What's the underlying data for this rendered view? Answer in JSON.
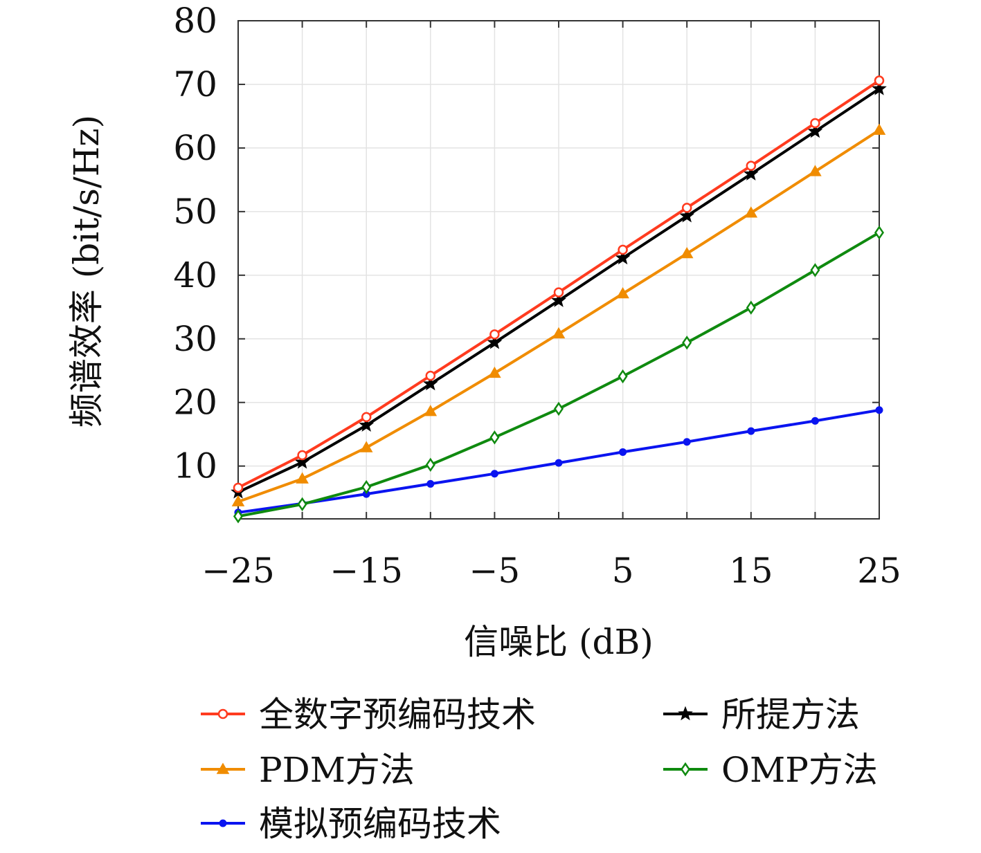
{
  "chart_data": {
    "type": "line",
    "title": "",
    "xlabel": "信噪比 (dB)",
    "ylabel": "频谱效率 (bit/s/Hz)",
    "x": [
      -25,
      -20,
      -15,
      -10,
      -5,
      0,
      5,
      10,
      15,
      20,
      25
    ],
    "xlim": [
      -25,
      25
    ],
    "ylim": [
      0,
      80
    ],
    "xticks": [
      -25,
      -15,
      -5,
      5,
      15,
      25
    ],
    "xtick_labels": [
      "−25",
      "−15",
      "−5",
      "5",
      "15",
      "25"
    ],
    "yticks": [
      10,
      20,
      30,
      40,
      50,
      60,
      70,
      80
    ],
    "ytick_labels": [
      "10",
      "20",
      "30",
      "40",
      "50",
      "60",
      "70",
      "80"
    ],
    "grid": true,
    "legend_position": "bottom, outside plot area, two columns",
    "series": [
      {
        "name": "全数字预编码技术",
        "color": "#ff3b1f",
        "marker": "circle",
        "values": [
          6.6,
          11.7,
          17.7,
          24.2,
          30.7,
          37.3,
          44.0,
          50.6,
          57.2,
          63.9,
          70.6
        ]
      },
      {
        "name": "所提方法",
        "color": "#000000",
        "marker": "star",
        "values": [
          5.9,
          10.6,
          16.4,
          22.9,
          29.4,
          36.0,
          42.7,
          49.3,
          55.9,
          62.6,
          69.3
        ]
      },
      {
        "name": "PDM方法",
        "color": "#f08c00",
        "marker": "triangle",
        "values": [
          4.4,
          8.0,
          12.9,
          18.6,
          24.6,
          30.8,
          37.1,
          43.4,
          49.8,
          56.3,
          62.8
        ]
      },
      {
        "name": "OMP方法",
        "color": "#0f8a0f",
        "marker": "diamond",
        "values": [
          2.1,
          4.0,
          6.7,
          10.2,
          14.5,
          19.0,
          24.1,
          29.4,
          34.9,
          40.8,
          46.7
        ]
      },
      {
        "name": "模拟预编码技术",
        "color": "#0a14f0",
        "marker": "dot",
        "values": [
          2.7,
          4.1,
          5.6,
          7.2,
          8.8,
          10.5,
          12.2,
          13.8,
          15.5,
          17.1,
          18.8
        ]
      }
    ]
  }
}
